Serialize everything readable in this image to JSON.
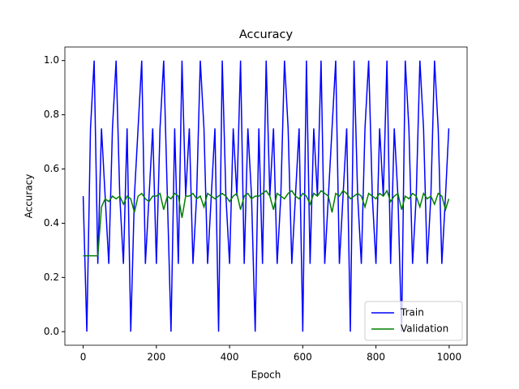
{
  "chart_data": {
    "type": "line",
    "title": "Accuracy",
    "x_label": "Epoch",
    "y_label": "Accuracy",
    "x": [
      0,
      10,
      20,
      30,
      40,
      50,
      60,
      70,
      80,
      90,
      100,
      110,
      120,
      130,
      140,
      150,
      160,
      170,
      180,
      190,
      200,
      210,
      220,
      230,
      240,
      250,
      260,
      270,
      280,
      290,
      300,
      310,
      320,
      330,
      340,
      350,
      360,
      370,
      380,
      390,
      400,
      410,
      420,
      430,
      440,
      450,
      460,
      470,
      480,
      490,
      500,
      510,
      520,
      530,
      540,
      550,
      560,
      570,
      580,
      590,
      600,
      610,
      620,
      630,
      640,
      650,
      660,
      670,
      680,
      690,
      700,
      710,
      720,
      730,
      740,
      750,
      760,
      770,
      780,
      790,
      800,
      810,
      820,
      830,
      840,
      850,
      860,
      870,
      880,
      890,
      900,
      910,
      920,
      930,
      940,
      950,
      960,
      970,
      980,
      990,
      999
    ],
    "series": [
      {
        "name": "Train",
        "color": "#0000ff",
        "values": [
          0.5,
          0,
          0.75,
          1,
          0.25,
          0.75,
          0.5,
          0.25,
          0.75,
          1,
          0.5,
          0.25,
          0.75,
          0,
          0.5,
          0.75,
          1,
          0.25,
          0.5,
          0.75,
          0.25,
          0.75,
          1,
          0.5,
          0,
          0.75,
          0.25,
          1,
          0.5,
          0.75,
          0.25,
          0.5,
          1,
          0.75,
          0.25,
          0.5,
          0.75,
          0,
          1,
          0.5,
          0.25,
          0.75,
          0.5,
          1,
          0.25,
          0.75,
          0.5,
          0,
          0.75,
          0.25,
          1,
          0.5,
          0.75,
          0.25,
          0.5,
          1,
          0.75,
          0.25,
          0.5,
          0.75,
          0,
          1,
          0.25,
          0.75,
          0.5,
          1,
          0.25,
          0.5,
          0.75,
          1,
          0.25,
          0.5,
          0.75,
          0,
          1,
          0.5,
          0.25,
          0.75,
          1,
          0.5,
          0.25,
          0.75,
          0.5,
          1,
          0.25,
          0.75,
          0.5,
          0,
          1,
          0.75,
          0.25,
          0.5,
          1,
          0.75,
          0.25,
          0.5,
          1,
          0.75,
          0.25,
          0.5,
          0.75
        ]
      },
      {
        "name": "Validation",
        "color": "#008000",
        "values": [
          0.28,
          0.28,
          0.28,
          0.28,
          0.28,
          0.46,
          0.49,
          0.48,
          0.5,
          0.49,
          0.5,
          0.47,
          0.5,
          0.49,
          0.44,
          0.5,
          0.51,
          0.49,
          0.48,
          0.5,
          0.5,
          0.51,
          0.45,
          0.5,
          0.49,
          0.51,
          0.5,
          0.42,
          0.5,
          0.5,
          0.51,
          0.49,
          0.5,
          0.46,
          0.51,
          0.5,
          0.49,
          0.5,
          0.51,
          0.5,
          0.48,
          0.5,
          0.51,
          0.45,
          0.5,
          0.51,
          0.49,
          0.5,
          0.5,
          0.51,
          0.52,
          0.5,
          0.45,
          0.51,
          0.5,
          0.49,
          0.51,
          0.52,
          0.5,
          0.49,
          0.51,
          0.5,
          0.47,
          0.51,
          0.5,
          0.52,
          0.51,
          0.5,
          0.44,
          0.51,
          0.5,
          0.52,
          0.51,
          0.49,
          0.5,
          0.51,
          0.5,
          0.46,
          0.51,
          0.5,
          0.49,
          0.51,
          0.5,
          0.52,
          0.48,
          0.5,
          0.51,
          0.45,
          0.5,
          0.49,
          0.51,
          0.5,
          0.46,
          0.51,
          0.49,
          0.5,
          0.47,
          0.51,
          0.5,
          0.45,
          0.49
        ]
      }
    ],
    "xlim": [
      -50,
      1049
    ],
    "ylim": [
      -0.05,
      1.05
    ],
    "xticks": [
      0,
      200,
      400,
      600,
      800,
      1000
    ],
    "yticks": [
      {
        "value": 0,
        "label": "0.0"
      },
      {
        "value": 0.2,
        "label": "0.2"
      },
      {
        "value": 0.4,
        "label": "0.4"
      },
      {
        "value": 0.6,
        "label": "0.6"
      },
      {
        "value": 0.8,
        "label": "0.8"
      },
      {
        "value": 1,
        "label": "1.0"
      }
    ],
    "legend": "lower right"
  }
}
